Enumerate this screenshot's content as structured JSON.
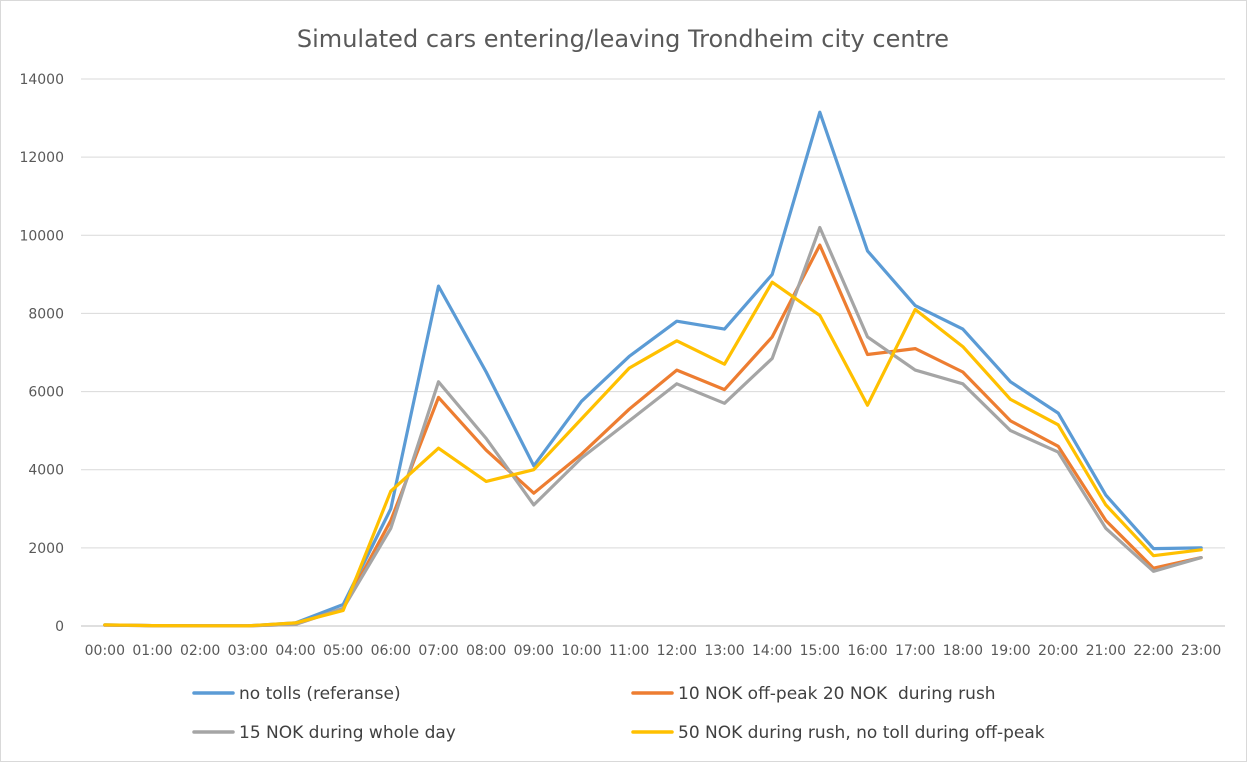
{
  "chart_data": {
    "type": "line",
    "title": "Simulated cars entering/leaving Trondheim city centre",
    "xlabel": "",
    "ylabel": "",
    "ylim": [
      0,
      14000
    ],
    "yticks": [
      0,
      2000,
      4000,
      6000,
      8000,
      10000,
      12000,
      14000
    ],
    "ytick_labels": [
      "0",
      "2000",
      "4000",
      "6000",
      "8000",
      "10000",
      "12000",
      "14000"
    ],
    "grid": true,
    "legend_position": "bottom",
    "categories": [
      "00:00",
      "01:00",
      "02:00",
      "03:00",
      "04:00",
      "05:00",
      "06:00",
      "07:00",
      "08:00",
      "09:00",
      "10:00",
      "11:00",
      "12:00",
      "13:00",
      "14:00",
      "15:00",
      "16:00",
      "17:00",
      "18:00",
      "19:00",
      "20:00",
      "21:00",
      "22:00",
      "23:00"
    ],
    "series": [
      {
        "name": "no tolls (referanse)",
        "color": "#5b9bd5",
        "values": [
          30,
          10,
          5,
          5,
          80,
          550,
          3000,
          8700,
          6500,
          4100,
          5750,
          6900,
          7800,
          7600,
          9000,
          13150,
          9600,
          8200,
          7600,
          6250,
          5450,
          3350,
          1980,
          2000
        ]
      },
      {
        "name": "10 NOK off-peak 20 NOK  during rush",
        "color": "#ed7d31",
        "values": [
          20,
          10,
          5,
          5,
          40,
          450,
          2700,
          5850,
          4500,
          3400,
          4400,
          5550,
          6550,
          6050,
          7400,
          9750,
          6950,
          7100,
          6500,
          5250,
          4600,
          2700,
          1480,
          1750
        ]
      },
      {
        "name": "15 NOK during whole day",
        "color": "#a5a5a5",
        "values": [
          20,
          10,
          5,
          5,
          40,
          450,
          2500,
          6250,
          4800,
          3100,
          4300,
          5250,
          6200,
          5700,
          6850,
          10200,
          7400,
          6550,
          6200,
          5000,
          4450,
          2500,
          1400,
          1750
        ]
      },
      {
        "name": "50 NOK during rush, no toll during off-peak",
        "color": "#ffc000",
        "values": [
          30,
          10,
          5,
          5,
          80,
          400,
          3450,
          4550,
          3700,
          4000,
          5300,
          6600,
          7300,
          6700,
          8800,
          7950,
          5650,
          8100,
          7150,
          5800,
          5150,
          3100,
          1800,
          1950
        ]
      }
    ]
  }
}
